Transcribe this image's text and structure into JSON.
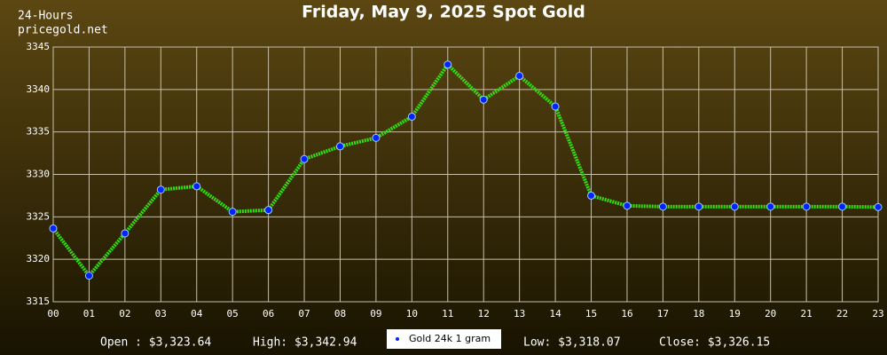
{
  "chart_data": {
    "type": "line",
    "title": "Friday, May 9, 2025 Spot Gold",
    "subtitle_lines": [
      "24-Hours",
      "pricegold.net"
    ],
    "categories": [
      "00",
      "01",
      "02",
      "03",
      "04",
      "05",
      "06",
      "07",
      "08",
      "09",
      "10",
      "11",
      "12",
      "13",
      "14",
      "15",
      "16",
      "17",
      "18",
      "19",
      "20",
      "21",
      "22",
      "23"
    ],
    "series": [
      {
        "name": "Gold 24k 1 gram",
        "color": "#33dd11",
        "marker_color": "#0022ff",
        "values": [
          3323.64,
          3318.07,
          3323.05,
          3328.2,
          3328.6,
          3325.6,
          3325.8,
          3331.8,
          3333.3,
          3334.3,
          3336.8,
          3342.94,
          3338.8,
          3341.6,
          3338.0,
          3327.5,
          3326.3,
          3326.2,
          3326.2,
          3326.2,
          3326.2,
          3326.2,
          3326.2,
          3326.15
        ]
      }
    ],
    "ylim": [
      3315,
      3345
    ],
    "yticks": [
      3315,
      3320,
      3325,
      3330,
      3335,
      3340,
      3345
    ],
    "grid": true,
    "annotations": [
      "Open : $3,323.64",
      "High: $3,342.94",
      "Low: $3,318.07",
      "Close: $3,326.15"
    ]
  }
}
